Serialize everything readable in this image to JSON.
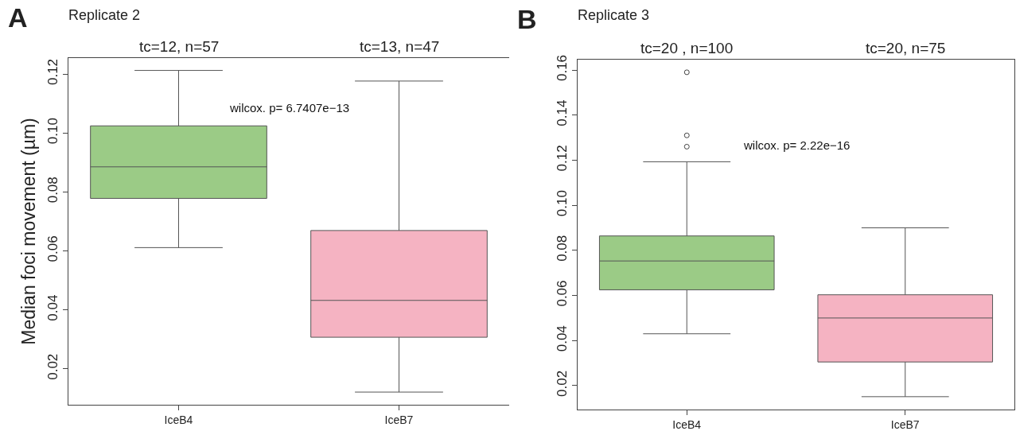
{
  "chart_data": [
    {
      "type": "box",
      "title": "Replicate 2",
      "ylabel": "Median foci movement (µm)",
      "categories": [
        "IceB4",
        "IceB7"
      ],
      "colors": [
        "#9bcb86",
        "#f5b3c2"
      ],
      "boxes": [
        {
          "low": 0.0611,
          "q1": 0.0778,
          "median": 0.0885,
          "q3": 0.1024,
          "high": 0.1212
        },
        {
          "low": 0.0121,
          "q1": 0.0307,
          "median": 0.0432,
          "q3": 0.0669,
          "high": 0.1176
        }
      ],
      "ylim": [
        0.0078,
        0.1254
      ],
      "yticks": [
        {
          "value": 0.02,
          "label": "0.02"
        },
        {
          "value": 0.04,
          "label": "0.04"
        },
        {
          "value": 0.06,
          "label": "0.06"
        },
        {
          "value": 0.08,
          "label": "0.08"
        },
        {
          "value": 0.1,
          "label": "0.10"
        },
        {
          "value": 0.12,
          "label": "0.12"
        }
      ],
      "grid": false,
      "annotations": [
        "A",
        "tc=12, n=57",
        "tc=13, n=47",
        "wilcox. p= 6.7407e−13"
      ]
    },
    {
      "type": "box",
      "title": "Replicate 3",
      "categories": [
        "IceB4",
        "IceB7"
      ],
      "colors": [
        "#9bcb86",
        "#f5b3c2"
      ],
      "boxes": [
        {
          "low": 0.043,
          "q1": 0.0625,
          "median": 0.0753,
          "q3": 0.0864,
          "high": 0.1193,
          "outliers": [
            0.159,
            0.131,
            0.126
          ]
        },
        {
          "low": 0.0151,
          "q1": 0.0305,
          "median": 0.05,
          "q3": 0.0603,
          "high": 0.09
        }
      ],
      "ylim": [
        0.0094,
        0.1646
      ],
      "yticks": [
        {
          "value": 0.02,
          "label": "0.02"
        },
        {
          "value": 0.04,
          "label": "0.04"
        },
        {
          "value": 0.06,
          "label": "0.06"
        },
        {
          "value": 0.08,
          "label": "0.08"
        },
        {
          "value": 0.1,
          "label": "0.10"
        },
        {
          "value": 0.12,
          "label": "0.12"
        },
        {
          "value": 0.14,
          "label": "0.14"
        },
        {
          "value": 0.16,
          "label": "0.16"
        }
      ],
      "grid": false,
      "annotations": [
        "B",
        "tc=20 , n=100",
        "tc=20, n=75",
        "wilcox. p= 2.22e−16"
      ]
    }
  ]
}
